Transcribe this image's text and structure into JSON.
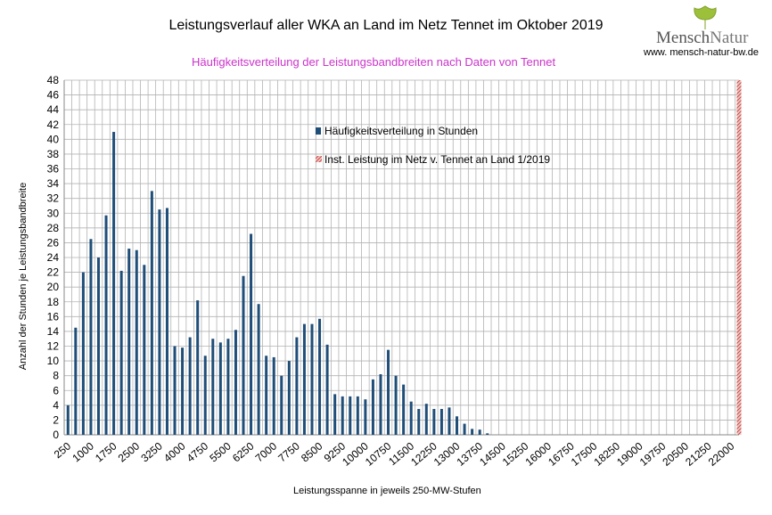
{
  "header": {
    "title": "Leistungsverlauf aller WKA an Land im Netz Tennet im Oktober 2019",
    "subtitle": "Häufigkeitsverteilung der Leistungsbandbreiten nach Daten von Tennet"
  },
  "logo": {
    "name_part1": "Mensch",
    "name_part2": "Natur",
    "url": "www. mensch-natur-bw.de"
  },
  "colors": {
    "bar": "#1f4e79",
    "accent_line": "#c0504d",
    "subtitle": "#cc33cc",
    "grid": "#b3b3b3"
  },
  "chart_data": {
    "type": "bar",
    "title": "Leistungsverlauf aller WKA an Land im Netz Tennet im Oktober 2019",
    "subtitle": "Häufigkeitsverteilung der Leistungsbandbreiten nach Daten von Tennet",
    "xlabel": "Leistungsspanne in jeweils 250-MW-Stufen",
    "ylabel": "Anzahl der Stunden je Leistungsbandbreite",
    "ylim": [
      0,
      48
    ],
    "ytick_step": 2,
    "x_categories_start": 250,
    "x_categories_step": 250,
    "x_categories_end": 22250,
    "x_tick_labels": [
      "250",
      "1000",
      "1750",
      "2500",
      "3250",
      "4000",
      "4750",
      "5500",
      "6250",
      "7000",
      "7750",
      "8500",
      "9250",
      "10000",
      "10750",
      "11500",
      "12250",
      "13000",
      "13750",
      "14500",
      "15250",
      "16000",
      "16750",
      "17500",
      "18250",
      "19000",
      "19750",
      "20500",
      "21250",
      "22000"
    ],
    "grid": true,
    "series": [
      {
        "name": "Häufigkeitsverteilung in Stunden",
        "values": [
          4,
          14.5,
          22,
          26.5,
          24,
          29.7,
          41,
          22.2,
          25.2,
          25,
          23,
          33,
          30.5,
          30.7,
          12,
          11.8,
          13.2,
          18.2,
          10.7,
          13,
          12.5,
          13,
          14.2,
          21.5,
          27.2,
          17.7,
          10.7,
          10.5,
          8,
          10,
          13.2,
          15,
          15,
          15.7,
          12.2,
          5.5,
          5.2,
          5.2,
          5.2,
          4.8,
          7.5,
          8.2,
          11.5,
          8,
          6.8,
          4.5,
          3.5,
          4.2,
          3.5,
          3.5,
          3.7,
          2.5,
          1.5,
          0.8,
          0.7,
          0.2
        ]
      },
      {
        "name": "Inst. Leistung im Netz v. Tennet an Land 1/2019",
        "x": 22250,
        "value": 48
      }
    ],
    "legend": "inside-top-center"
  }
}
